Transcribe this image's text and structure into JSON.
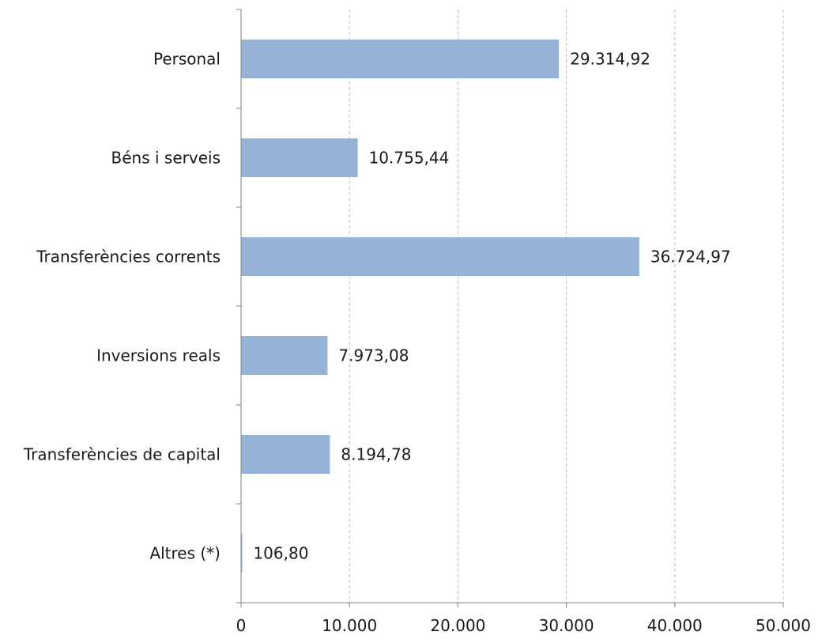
{
  "chart_data": {
    "type": "bar",
    "orientation": "horizontal",
    "categories": [
      "Personal",
      "Béns i serveis",
      "Transferències corrents",
      "Inversions reals",
      "Transferències de capital",
      "Altres (*)"
    ],
    "values": [
      29314.92,
      10755.44,
      36724.97,
      7973.08,
      8194.78,
      106.8
    ],
    "value_labels": [
      "29.314,92",
      "10.755,44",
      "36.724,97",
      "7.973,08",
      "8.194,78",
      "106,80"
    ],
    "x_ticks": [
      0,
      10000,
      20000,
      30000,
      40000,
      50000
    ],
    "x_tick_labels": [
      "0",
      "10.000",
      "20.000",
      "30.000",
      "40.000",
      "50.000"
    ],
    "xlim": [
      0,
      50000
    ],
    "grid": "vertical-dashed",
    "legend": "none",
    "title": "",
    "xlabel": "",
    "ylabel": "",
    "colors": {
      "bar": "#95b3d7",
      "axis": "#808080",
      "grid": "#bfbfbf",
      "text": "#1a1a1a"
    }
  }
}
